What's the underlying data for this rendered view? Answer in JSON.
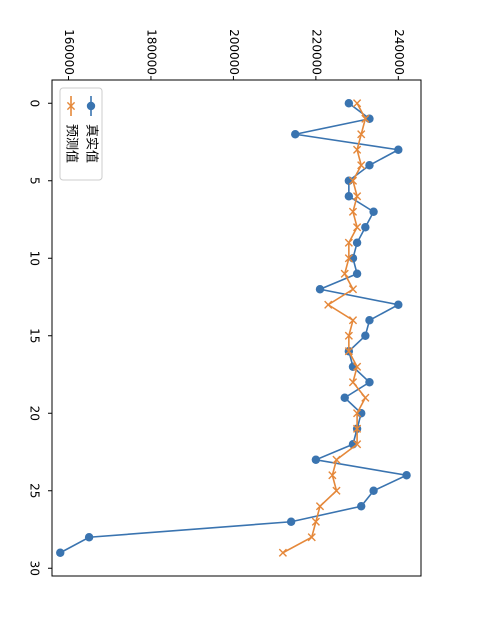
{
  "chart_data": {
    "type": "line",
    "orientation": "rotated-90-clockwise",
    "x": [
      0,
      1,
      2,
      3,
      4,
      5,
      6,
      7,
      8,
      9,
      10,
      11,
      12,
      13,
      14,
      15,
      16,
      17,
      18,
      19,
      20,
      21,
      22,
      23,
      24,
      25,
      26,
      27,
      28,
      29
    ],
    "series": [
      {
        "name": "真实值",
        "marker": "circle",
        "color": "#3a74b0",
        "values": [
          228000,
          233000,
          215000,
          240000,
          233000,
          228000,
          228000,
          234000,
          232000,
          230000,
          229000,
          230000,
          221000,
          240000,
          233000,
          232000,
          228000,
          229000,
          233000,
          227000,
          231000,
          230000,
          229000,
          220000,
          242000,
          234000,
          231000,
          214000,
          165000,
          158000
        ]
      },
      {
        "name": "预测值",
        "marker": "x",
        "color": "#e5883a",
        "values": [
          230000,
          232000,
          231000,
          230000,
          231000,
          229000,
          230000,
          229000,
          230000,
          228000,
          228000,
          227000,
          229000,
          223000,
          229000,
          228000,
          228000,
          230000,
          229000,
          232000,
          230000,
          230000,
          230000,
          225000,
          224000,
          225000,
          221000,
          220000,
          219000,
          212000
        ]
      }
    ],
    "xticks": [
      0,
      5,
      10,
      15,
      20,
      25,
      30
    ],
    "yticks": [
      160000,
      180000,
      200000,
      220000,
      240000
    ],
    "xlim": [
      -1.5,
      30.5
    ],
    "ylim": [
      156000,
      245500
    ],
    "title": "",
    "xlabel": "",
    "ylabel": "",
    "grid": false,
    "legend_position": "top-right"
  }
}
